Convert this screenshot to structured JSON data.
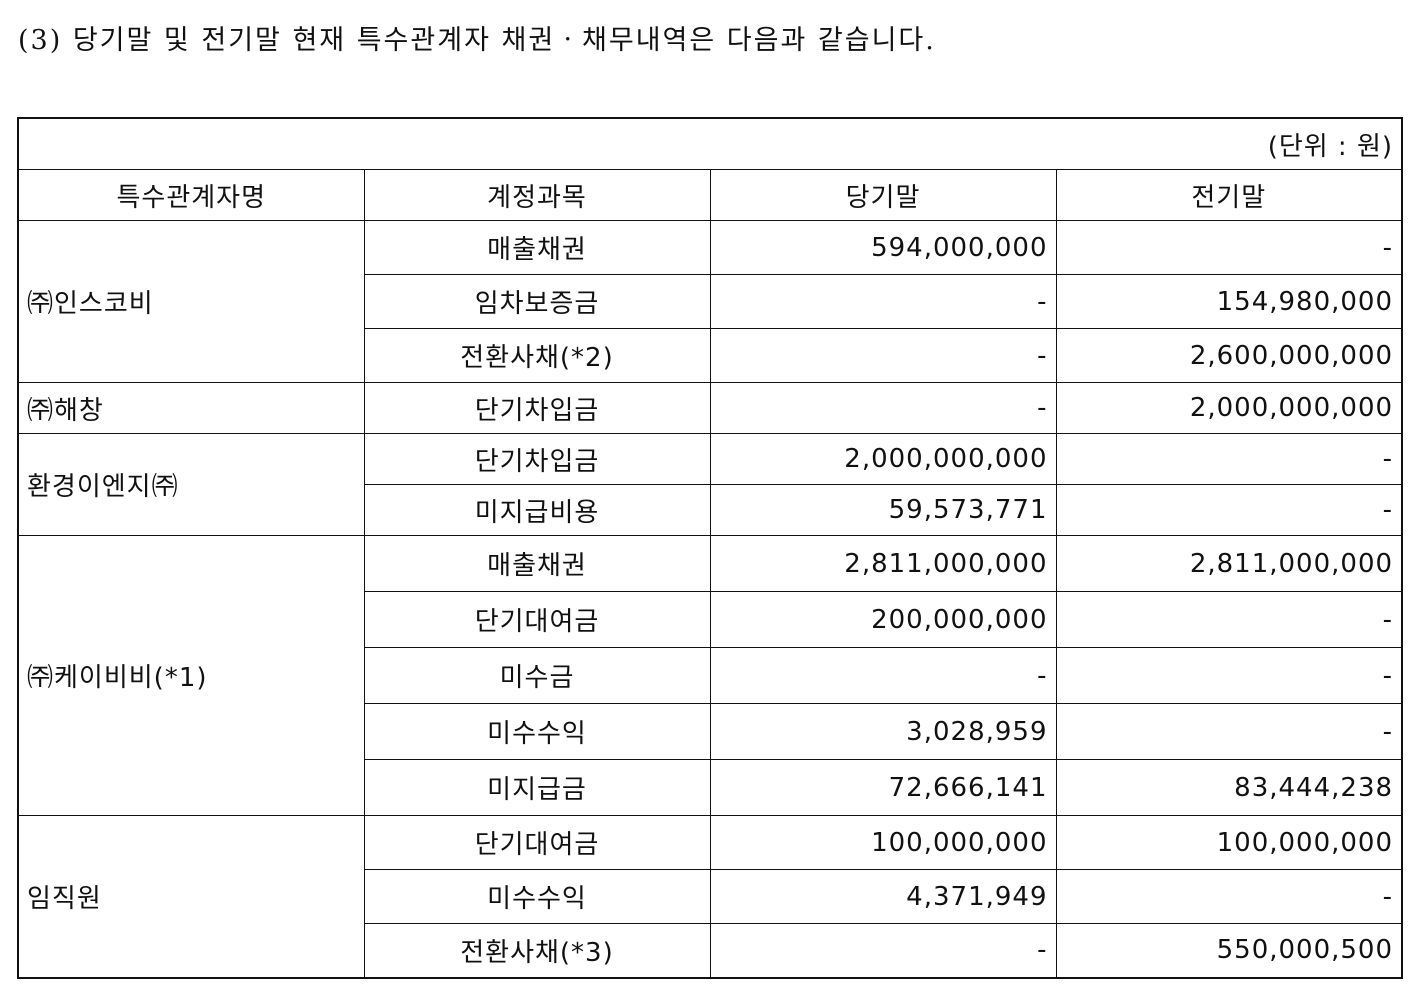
{
  "title": "(3) 당기말 및 전기말 현재 특수관계자 채권ㆍ채무내역은 다음과 같습니다.",
  "unit": "(단위 : 원)",
  "headers": {
    "party": "특수관계자명",
    "account": "계정과목",
    "current": "당기말",
    "prior": "전기말"
  },
  "groups": [
    {
      "party": "㈜인스코비",
      "rows": [
        {
          "account": "매출채권",
          "current": "594,000,000",
          "prior": "-"
        },
        {
          "account": "임차보증금",
          "current": "-",
          "prior": "154,980,000"
        },
        {
          "account": "전환사채(*2)",
          "current": "-",
          "prior": "2,600,000,000"
        }
      ]
    },
    {
      "party": "㈜해창",
      "rows": [
        {
          "account": "단기차입금",
          "current": "-",
          "prior": "2,000,000,000"
        }
      ]
    },
    {
      "party": "환경이엔지㈜",
      "rows": [
        {
          "account": "단기차입금",
          "current": "2,000,000,000",
          "prior": "-"
        },
        {
          "account": "미지급비용",
          "current": "59,573,771",
          "prior": "-"
        }
      ]
    },
    {
      "party": "㈜케이비비(*1)",
      "rows": [
        {
          "account": "매출채권",
          "current": "2,811,000,000",
          "prior": "2,811,000,000"
        },
        {
          "account": "단기대여금",
          "current": "200,000,000",
          "prior": "-"
        },
        {
          "account": "미수금",
          "current": "-",
          "prior": "-"
        },
        {
          "account": "미수수익",
          "current": "3,028,959",
          "prior": "-"
        },
        {
          "account": "미지급금",
          "current": "72,666,141",
          "prior": "83,444,238"
        }
      ]
    },
    {
      "party": "임직원",
      "rows": [
        {
          "account": "단기대여금",
          "current": "100,000,000",
          "prior": "100,000,000"
        },
        {
          "account": "미수수익",
          "current": "4,371,949",
          "prior": "-"
        },
        {
          "account": "전환사채(*3)",
          "current": "-",
          "prior": "550,000,500"
        }
      ]
    }
  ]
}
